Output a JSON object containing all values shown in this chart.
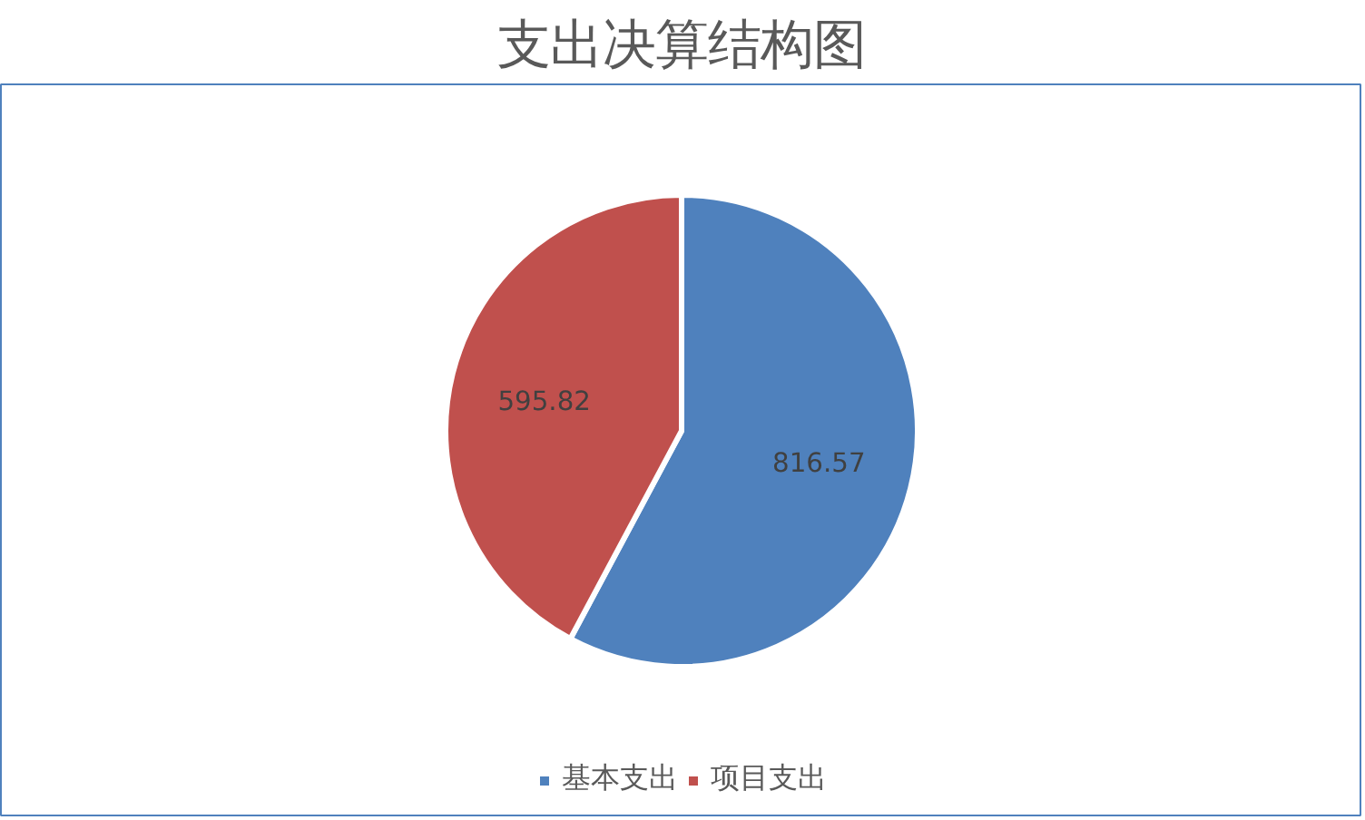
{
  "chart_data": {
    "type": "pie",
    "title": "支出决算结构图",
    "categories": [
      "基本支出",
      "项目支出"
    ],
    "values": [
      816.57,
      595.82
    ],
    "colors": [
      "#4f81bd",
      "#c0504d"
    ],
    "data_labels": true,
    "legend": "bottom"
  }
}
